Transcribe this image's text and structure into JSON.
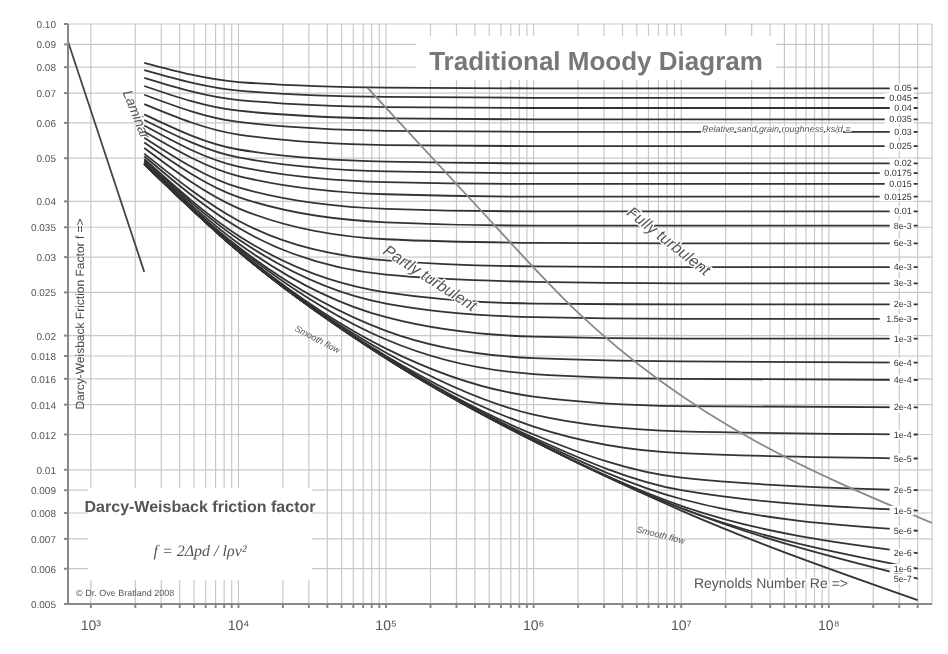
{
  "chart_data": {
    "type": "line",
    "title": "Traditional Moody Diagram",
    "xlabel": "Reynolds Number Re =>",
    "ylabel": "Darcy-Weisback Friction Factor f =>",
    "log": "xy",
    "grid": true,
    "xlim": [
      700,
      500000000
    ],
    "ylim": [
      0.005,
      0.1
    ],
    "xticks": [
      {
        "value": 1000,
        "label": "10³"
      },
      {
        "value": 2000,
        "label": null
      },
      {
        "value": 3000,
        "label": null
      },
      {
        "value": 4000,
        "label": null
      },
      {
        "value": 5000,
        "label": null
      },
      {
        "value": 6000,
        "label": null
      },
      {
        "value": 7000,
        "label": null
      },
      {
        "value": 8000,
        "label": null
      },
      {
        "value": 9000,
        "label": null
      },
      {
        "value": 10000,
        "label": "10⁴"
      },
      {
        "value": 20000,
        "label": null
      },
      {
        "value": 30000,
        "label": null
      },
      {
        "value": 40000,
        "label": null
      },
      {
        "value": 50000,
        "label": null
      },
      {
        "value": 60000,
        "label": null
      },
      {
        "value": 70000,
        "label": null
      },
      {
        "value": 80000,
        "label": null
      },
      {
        "value": 90000,
        "label": null
      },
      {
        "value": 100000,
        "label": "10⁵"
      },
      {
        "value": 200000,
        "label": null
      },
      {
        "value": 300000,
        "label": null
      },
      {
        "value": 400000,
        "label": null
      },
      {
        "value": 500000,
        "label": null
      },
      {
        "value": 600000,
        "label": null
      },
      {
        "value": 700000,
        "label": null
      },
      {
        "value": 800000,
        "label": null
      },
      {
        "value": 900000,
        "label": null
      },
      {
        "value": 1000000,
        "label": "10⁶"
      },
      {
        "value": 2000000,
        "label": null
      },
      {
        "value": 3000000,
        "label": null
      },
      {
        "value": 4000000,
        "label": null
      },
      {
        "value": 5000000,
        "label": null
      },
      {
        "value": 6000000,
        "label": null
      },
      {
        "value": 7000000,
        "label": null
      },
      {
        "value": 8000000,
        "label": null
      },
      {
        "value": 9000000,
        "label": null
      },
      {
        "value": 10000000,
        "label": "10⁷"
      },
      {
        "value": 20000000,
        "label": null
      },
      {
        "value": 30000000,
        "label": null
      },
      {
        "value": 40000000,
        "label": null
      },
      {
        "value": 50000000,
        "label": null
      },
      {
        "value": 60000000,
        "label": null
      },
      {
        "value": 70000000,
        "label": null
      },
      {
        "value": 80000000,
        "label": null
      },
      {
        "value": 90000000,
        "label": null
      },
      {
        "value": 100000000,
        "label": "10⁸"
      },
      {
        "value": 200000000,
        "label": null
      },
      {
        "value": 300000000,
        "label": null
      },
      {
        "value": 400000000,
        "label": null
      }
    ],
    "yticks": [
      0.005,
      0.006,
      0.007,
      0.008,
      0.009,
      0.01,
      0.012,
      0.014,
      0.016,
      0.018,
      0.02,
      0.025,
      0.03,
      0.035,
      0.04,
      0.05,
      0.06,
      0.07,
      0.08,
      0.09,
      {
        "value": 0.1,
        "label": "0.10"
      }
    ],
    "x": [
      2300,
      10000,
      100000,
      1000000,
      10000000,
      400000000
    ],
    "series": [
      {
        "name": "0.05",
        "color": "#333333",
        "values": [
          0.0818,
          0.0741,
          0.072,
          0.0717,
          0.0717,
          0.0717
        ]
      },
      {
        "name": "0.045",
        "color": "#333333",
        "values": [
          0.0788,
          0.0709,
          0.0686,
          0.0683,
          0.0683,
          0.0683
        ]
      },
      {
        "name": "0.04",
        "color": "#333333",
        "values": [
          0.0757,
          0.0675,
          0.0651,
          0.0648,
          0.0648,
          0.0648
        ]
      },
      {
        "name": "0.035",
        "color": "#333333",
        "values": [
          0.0726,
          0.0639,
          0.0614,
          0.0611,
          0.0611,
          0.0611
        ]
      },
      {
        "name": "0.03",
        "color": "#333333",
        "values": [
          0.0694,
          0.0603,
          0.0576,
          0.0573,
          0.0573,
          0.0573
        ]
      },
      {
        "name": "0.025",
        "color": "#333333",
        "values": [
          0.0661,
          0.0565,
          0.0535,
          0.0532,
          0.0532,
          0.0532
        ]
      },
      {
        "name": "0.02",
        "color": "#333333",
        "values": [
          0.0627,
          0.0523,
          0.0491,
          0.0487,
          0.0487,
          0.0487
        ]
      },
      {
        "name": "0.0175",
        "color": "#333333",
        "values": [
          0.0609,
          0.0502,
          0.0467,
          0.0463,
          0.0463,
          0.0463
        ]
      },
      {
        "name": "0.015",
        "color": "#333333",
        "values": [
          0.0592,
          0.0479,
          0.0442,
          0.0438,
          0.0438,
          0.0438
        ]
      },
      {
        "name": "0.0125",
        "color": "#333333",
        "values": [
          0.0574,
          0.0456,
          0.0415,
          0.041,
          0.041,
          0.041
        ]
      },
      {
        "name": "0.01",
        "color": "#333333",
        "values": [
          0.0556,
          0.043,
          0.0385,
          0.038,
          0.038,
          0.038
        ]
      },
      {
        "name": "8e-3",
        "color": "#333333",
        "values": [
          0.0542,
          0.0409,
          0.0359,
          0.0353,
          0.0353,
          0.0353
        ]
      },
      {
        "name": "6e-3",
        "color": "#333333",
        "values": [
          0.0527,
          0.0386,
          0.0329,
          0.0323,
          0.0322,
          0.0322
        ]
      },
      {
        "name": "4e-3",
        "color": "#333333",
        "values": [
          0.0512,
          0.0362,
          0.0295,
          0.0286,
          0.0285,
          0.0285
        ]
      },
      {
        "name": "3e-3",
        "color": "#333333",
        "values": [
          0.0505,
          0.0349,
          0.0274,
          0.0264,
          0.0262,
          0.0262
        ]
      },
      {
        "name": "2e-3",
        "color": "#333333",
        "values": [
          0.0498,
          0.0335,
          0.025,
          0.0236,
          0.0235,
          0.0235
        ]
      },
      {
        "name": "1.5e-3",
        "color": "#333333",
        "values": [
          0.0494,
          0.0329,
          0.0236,
          0.022,
          0.0218,
          0.0218
        ]
      },
      {
        "name": "1e-3",
        "color": "#333333",
        "values": [
          0.0491,
          0.0322,
          0.022,
          0.0199,
          0.0197,
          0.0197
        ]
      },
      {
        "name": "6e-4",
        "color": "#333333",
        "values": [
          0.0488,
          0.0316,
          0.0205,
          0.0178,
          0.0175,
          0.0174
        ]
      },
      {
        "name": "4e-4",
        "color": "#333333",
        "values": [
          0.0487,
          0.0314,
          0.0196,
          0.0164,
          0.016,
          0.0159
        ]
      },
      {
        "name": "2e-4",
        "color": "#333333",
        "values": [
          0.0486,
          0.0311,
          0.0187,
          0.0146,
          0.0139,
          0.0138
        ]
      },
      {
        "name": "1e-4",
        "color": "#333333",
        "values": [
          0.0486,
          0.031,
          0.0183,
          0.0133,
          0.0122,
          0.012
        ]
      },
      {
        "name": "5e-5",
        "color": "#333333",
        "values": [
          0.0485,
          0.0309,
          0.018,
          0.0125,
          0.0109,
          0.0106
        ]
      },
      {
        "name": "2e-5",
        "color": "#333333",
        "values": [
          0.0485,
          0.0309,
          0.0179,
          0.012,
          0.0096,
          0.009
        ]
      },
      {
        "name": "1e-5",
        "color": "#333333",
        "values": [
          0.0485,
          0.0309,
          0.0179,
          0.0118,
          0.009,
          0.0081
        ]
      },
      {
        "name": "5e-6",
        "color": "#333333",
        "values": [
          0.0485,
          0.0309,
          0.0178,
          0.0117,
          0.0086,
          0.0073
        ]
      },
      {
        "name": "2e-6",
        "color": "#333333",
        "values": [
          0.0485,
          0.0309,
          0.0178,
          0.0116,
          0.0083,
          0.0065
        ]
      },
      {
        "name": "1e-6",
        "color": "#333333",
        "values": [
          0.0485,
          0.0309,
          0.0178,
          0.0116,
          0.0082,
          0.006
        ]
      },
      {
        "name": "5e-7",
        "color": "#333333",
        "values": [
          0.0485,
          0.0309,
          0.0178,
          0.0116,
          0.0082,
          0.0057
        ]
      },
      {
        "color": "#333333",
        "values": [
          0.0485,
          0.0309,
          0.0178,
          0.0116,
          0.0081,
          0.0051
        ]
      },
      {
        "color": "#444444",
        "x": [
          700,
          2300
        ],
        "values": [
          0.0914,
          0.0278
        ]
      },
      {
        "color": "#888888",
        "x": [
          75000,
          350000,
          1950000,
          500000000
        ],
        "values": [
          0.0719,
          0.0414,
          0.0227,
          0.0076
        ]
      }
    ],
    "annotations": [
      "Laminar",
      {
        "text": "Partly turbulent",
        "x": 190000,
        "y": 0.0263
      },
      {
        "text": "Fully turbulent",
        "x": 7800000,
        "y": 0.0319
      },
      "Smooth flow",
      "Smooth flow",
      {
        "text": "Relative sand grain roughness ks/d =",
        "x": 140000000,
        "y": 0.0573
      },
      "Darcy-Weisback friction factor",
      "f = 2Δpd / lρv²",
      "© Dr. Ove Bratland 2008"
    ]
  }
}
